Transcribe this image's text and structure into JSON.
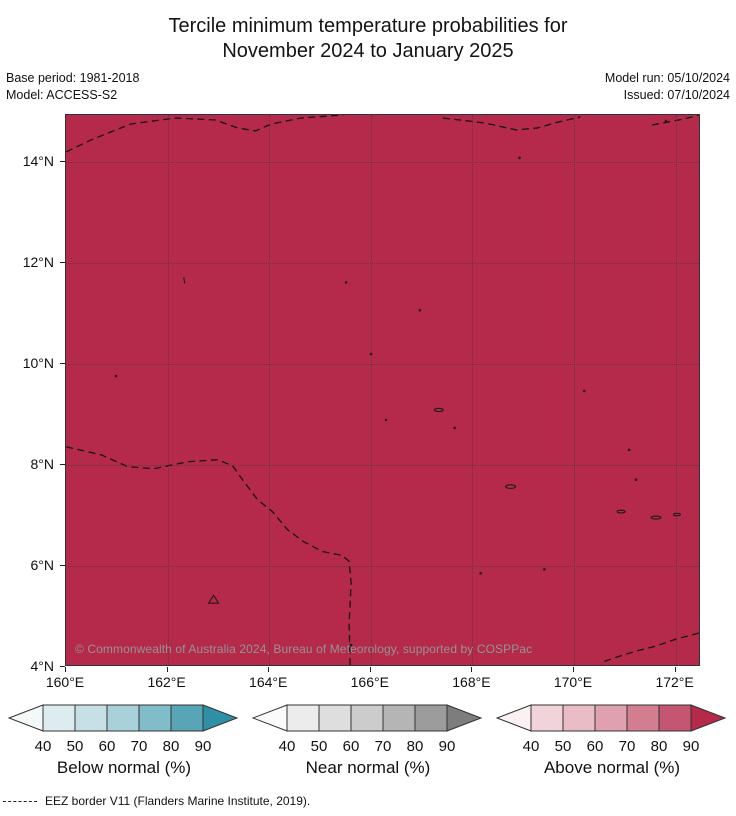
{
  "title": {
    "line1": "Tercile minimum temperature probabilities for",
    "line2": "November 2024 to January 2025"
  },
  "meta": {
    "base_period": "Base period: 1981-2018",
    "model": "Model: ACCESS-S2",
    "model_run": "Model run: 05/10/2024",
    "issued": "Issued: 07/10/2024"
  },
  "map": {
    "fill_color": "#b5294a",
    "grid_color": "rgba(60,60,60,0.65)",
    "x_ticks": [
      "160°E",
      "162°E",
      "164°E",
      "166°E",
      "168°E",
      "170°E",
      "172°E"
    ],
    "y_ticks": [
      "14°N",
      "12°N",
      "10°N",
      "8°N",
      "6°N",
      "4°N"
    ],
    "copyright": "© Commonwealth of Australia 2024, Bureau of Meteorology, supported by COSPPac"
  },
  "legend": {
    "colorbars": [
      {
        "id": "below",
        "label": "Below normal (%)",
        "ticks": [
          "40",
          "50",
          "60",
          "70",
          "80",
          "90"
        ],
        "arrow_left": "#f3f8f9",
        "box_colors": [
          "#dcecef",
          "#c6e0e5",
          "#a8d1d9",
          "#81bcc9",
          "#57a5b6"
        ],
        "arrow_right": "#2f90a5"
      },
      {
        "id": "near",
        "label": "Near normal (%)",
        "ticks": [
          "40",
          "50",
          "60",
          "70",
          "80",
          "90"
        ],
        "arrow_left": "#fafafa",
        "box_colors": [
          "#ececec",
          "#dedede",
          "#cccccc",
          "#b5b5b5",
          "#9c9c9c"
        ],
        "arrow_right": "#7d7d7d"
      },
      {
        "id": "above",
        "label": "Above normal (%)",
        "ticks": [
          "40",
          "50",
          "60",
          "70",
          "80",
          "90"
        ],
        "arrow_left": "#faf1f3",
        "box_colors": [
          "#f1d4da",
          "#e9bcc6",
          "#dfa0af",
          "#d27d90",
          "#c45672"
        ],
        "arrow_right": "#b5294a"
      }
    ]
  },
  "footer": {
    "eez_label": "EEZ border V11 (Flanders Marine Institute, 2019)."
  }
}
